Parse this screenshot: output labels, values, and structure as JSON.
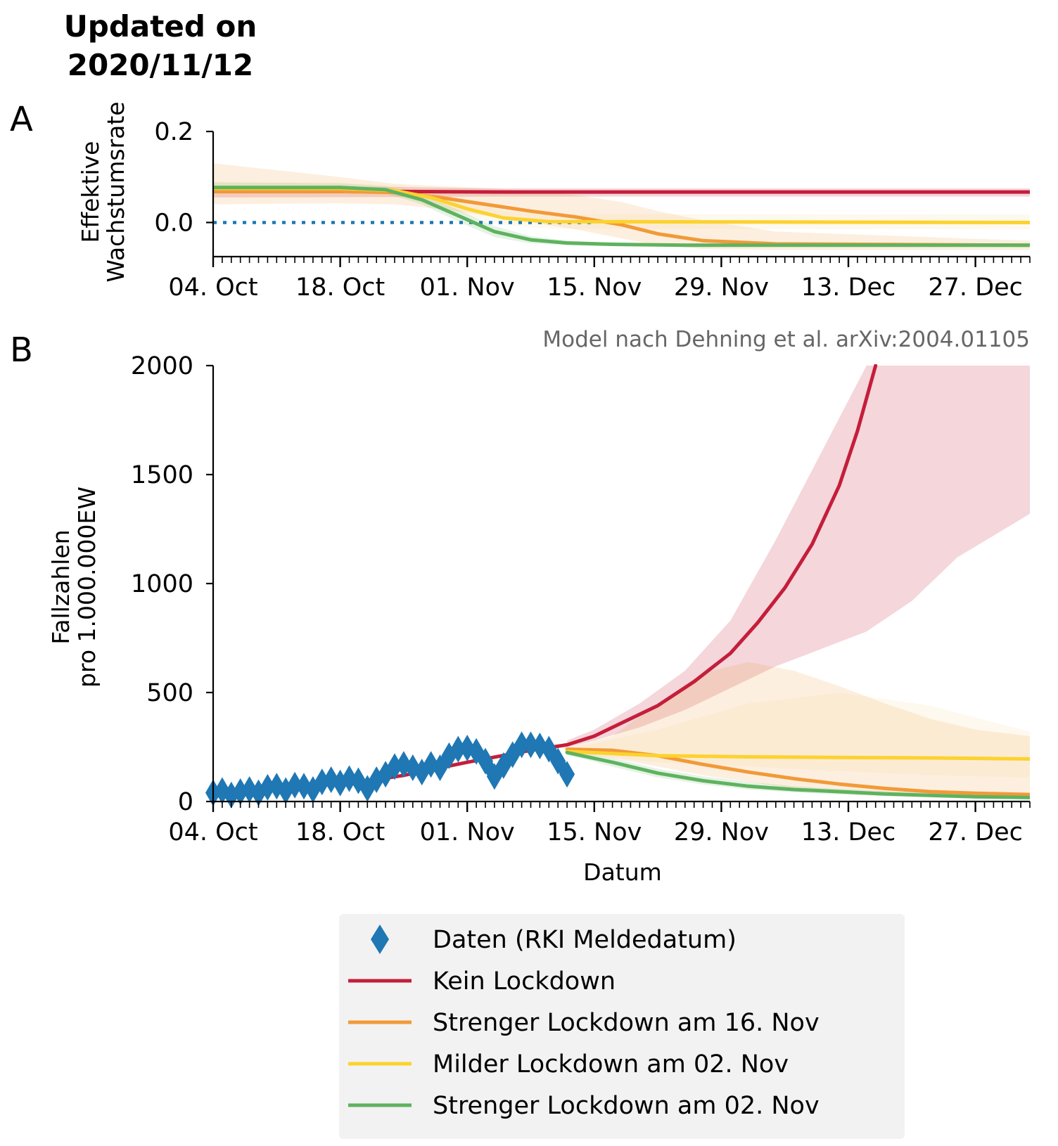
{
  "header": {
    "line1": "Updated on",
    "line2": "2020/11/12"
  },
  "panels": {
    "a_letter": "A",
    "b_letter": "B"
  },
  "credit": "Model nach Dehning et al. arXiv:2004.01105",
  "colors": {
    "data": "#1f77b4",
    "kein": "#c41e3a",
    "streng16": "#f19a38",
    "mild02": "#fcd22e",
    "streng02": "#5fb25f",
    "legend_bg": "#f2f2f2"
  },
  "chart_data": [
    {
      "id": "A",
      "type": "line",
      "ylabel": [
        "Effektive",
        "Wachstumsrate"
      ],
      "xlabel": "",
      "x_ticks": [
        "04. Oct",
        "18. Oct",
        "01. Nov",
        "15. Nov",
        "29. Nov",
        "13. Dec",
        "27. Dec"
      ],
      "x_tick_dates": [
        "2020-10-04",
        "2020-10-18",
        "2020-11-01",
        "2020-11-15",
        "2020-11-29",
        "2020-12-13",
        "2020-12-27"
      ],
      "xlim": [
        "2020-10-04",
        "2021-01-02"
      ],
      "yticks": [
        0.0,
        0.2
      ],
      "ytick_labels": [
        "0.0",
        "0.2"
      ],
      "ylim": [
        -0.075,
        0.2
      ],
      "reference_line": {
        "y": 0,
        "style": "dotted",
        "color": "#1f77b4"
      },
      "series": [
        {
          "key": "kein",
          "x": [
            "2020-10-04",
            "2020-10-25",
            "2020-11-05",
            "2021-01-02"
          ],
          "y": [
            0.068,
            0.068,
            0.067,
            0.067
          ],
          "band": {
            "upper": [
              0.08,
              0.078,
              0.075,
              0.075
            ],
            "lower": [
              0.055,
              0.056,
              0.057,
              0.057
            ]
          }
        },
        {
          "key": "streng16",
          "x": [
            "2020-10-04",
            "2020-10-18",
            "2020-10-24",
            "2020-10-29",
            "2020-11-03",
            "2020-11-08",
            "2020-11-13",
            "2020-11-18",
            "2020-11-22",
            "2020-11-27",
            "2020-12-05",
            "2021-01-02"
          ],
          "y": [
            0.068,
            0.068,
            0.066,
            0.055,
            0.04,
            0.025,
            0.012,
            -0.005,
            -0.025,
            -0.04,
            -0.047,
            -0.05
          ],
          "band": {
            "upper": [
              0.13,
              0.1,
              0.085,
              0.08,
              0.075,
              0.07,
              0.06,
              0.045,
              0.025,
              0.005,
              -0.02,
              -0.04
            ],
            "lower": [
              0.04,
              0.042,
              0.04,
              0.03,
              0.015,
              0.0,
              -0.015,
              -0.035,
              -0.05,
              -0.058,
              -0.06,
              -0.06
            ]
          }
        },
        {
          "key": "mild02",
          "x": [
            "2020-10-04",
            "2020-10-18",
            "2020-10-24",
            "2020-10-28",
            "2020-11-01",
            "2020-11-05",
            "2020-11-10",
            "2021-01-02"
          ],
          "y": [
            0.075,
            0.075,
            0.07,
            0.055,
            0.03,
            0.01,
            0.002,
            0.0
          ],
          "band": {
            "upper": [
              0.09,
              0.088,
              0.082,
              0.07,
              0.045,
              0.025,
              0.018,
              0.018
            ],
            "lower": [
              0.06,
              0.062,
              0.058,
              0.04,
              0.015,
              -0.005,
              -0.014,
              -0.015
            ]
          }
        },
        {
          "key": "streng02",
          "x": [
            "2020-10-04",
            "2020-10-18",
            "2020-10-23",
            "2020-10-27",
            "2020-10-31",
            "2020-11-04",
            "2020-11-08",
            "2020-11-12",
            "2020-11-17",
            "2020-11-25",
            "2021-01-02"
          ],
          "y": [
            0.077,
            0.077,
            0.072,
            0.05,
            0.015,
            -0.02,
            -0.038,
            -0.045,
            -0.048,
            -0.05,
            -0.05
          ],
          "band": {
            "upper": [
              0.088,
              0.086,
              0.08,
              0.06,
              0.028,
              -0.008,
              -0.03,
              -0.04,
              -0.045,
              -0.047,
              -0.047
            ],
            "lower": [
              0.066,
              0.068,
              0.064,
              0.04,
              0.002,
              -0.032,
              -0.046,
              -0.05,
              -0.052,
              -0.053,
              -0.053
            ]
          }
        }
      ]
    },
    {
      "id": "B",
      "type": "line",
      "ylabel": [
        "Fallzahlen",
        "pro 1.000.000EW"
      ],
      "xlabel": "Datum",
      "x_ticks": [
        "04. Oct",
        "18. Oct",
        "01. Nov",
        "15. Nov",
        "29. Nov",
        "13. Dec",
        "27. Dec"
      ],
      "x_tick_dates": [
        "2020-10-04",
        "2020-10-18",
        "2020-11-01",
        "2020-11-15",
        "2020-11-29",
        "2020-12-13",
        "2020-12-27"
      ],
      "xlim": [
        "2020-10-04",
        "2021-01-02"
      ],
      "yticks": [
        0,
        500,
        1000,
        1500,
        2000
      ],
      "ylim": [
        0,
        2000
      ],
      "series": [
        {
          "key": "data",
          "marker": "diamond",
          "x": [
            "2020-10-04",
            "2020-10-05",
            "2020-10-06",
            "2020-10-07",
            "2020-10-08",
            "2020-10-09",
            "2020-10-10",
            "2020-10-11",
            "2020-10-12",
            "2020-10-13",
            "2020-10-14",
            "2020-10-15",
            "2020-10-16",
            "2020-10-17",
            "2020-10-18",
            "2020-10-19",
            "2020-10-20",
            "2020-10-21",
            "2020-10-22",
            "2020-10-23",
            "2020-10-24",
            "2020-10-25",
            "2020-10-26",
            "2020-10-27",
            "2020-10-28",
            "2020-10-29",
            "2020-10-30",
            "2020-10-31",
            "2020-11-01",
            "2020-11-02",
            "2020-11-03",
            "2020-11-04",
            "2020-11-05",
            "2020-11-06",
            "2020-11-07",
            "2020-11-08",
            "2020-11-09",
            "2020-11-10",
            "2020-11-11",
            "2020-11-12"
          ],
          "y": [
            40,
            50,
            30,
            45,
            55,
            40,
            65,
            70,
            50,
            75,
            70,
            55,
            90,
            100,
            85,
            105,
            95,
            60,
            100,
            125,
            160,
            170,
            155,
            135,
            170,
            155,
            210,
            240,
            245,
            230,
            185,
            115,
            165,
            215,
            260,
            260,
            255,
            240,
            185,
            125
          ]
        },
        {
          "key": "kein",
          "x": [
            "2020-10-19",
            "2020-10-25",
            "2020-11-01",
            "2020-11-08",
            "2020-11-12",
            "2020-11-15",
            "2020-11-18",
            "2020-11-22",
            "2020-11-26",
            "2020-11-30",
            "2020-12-03",
            "2020-12-06",
            "2020-12-09",
            "2020-12-12",
            "2020-12-14",
            "2020-12-16"
          ],
          "y": [
            80,
            120,
            180,
            235,
            260,
            300,
            360,
            440,
            550,
            680,
            820,
            980,
            1180,
            1450,
            1700,
            2000
          ],
          "band": {
            "x": [
              "2020-11-12",
              "2020-11-15",
              "2020-11-20",
              "2020-11-25",
              "2020-11-30",
              "2020-12-05",
              "2020-12-10",
              "2020-12-15",
              "2020-12-20",
              "2020-12-25",
              "2021-01-02"
            ],
            "upper": [
              280,
              330,
              450,
              600,
              830,
              1200,
              1600,
              2000,
              2000,
              2000,
              2000
            ],
            "lower": [
              250,
              280,
              340,
              420,
              520,
              620,
              700,
              780,
              920,
              1120,
              1320
            ]
          }
        },
        {
          "key": "streng16",
          "x": [
            "2020-11-12",
            "2020-11-17",
            "2020-11-22",
            "2020-11-27",
            "2020-12-02",
            "2020-12-07",
            "2020-12-12",
            "2020-12-17",
            "2020-12-22",
            "2020-12-27",
            "2021-01-02"
          ],
          "y": [
            240,
            235,
            210,
            170,
            135,
            105,
            80,
            60,
            45,
            38,
            32
          ],
          "band": {
            "upper": [
              250,
              300,
              450,
              590,
              640,
              600,
              530,
              450,
              380,
              330,
              300
            ],
            "lower": [
              230,
              200,
              160,
              120,
              90,
              60,
              40,
              30,
              22,
              18,
              15
            ]
          }
        },
        {
          "key": "mild02",
          "x": [
            "2020-11-12",
            "2020-11-22",
            "2020-12-02",
            "2020-12-12",
            "2020-12-22",
            "2021-01-02"
          ],
          "y": [
            230,
            210,
            205,
            202,
            200,
            195
          ],
          "band": {
            "upper": [
              240,
              330,
              450,
              500,
              440,
              320
            ],
            "lower": [
              220,
              180,
              160,
              140,
              120,
              110
            ]
          }
        },
        {
          "key": "streng02",
          "x": [
            "2020-11-12",
            "2020-11-17",
            "2020-11-22",
            "2020-11-27",
            "2020-12-02",
            "2020-12-07",
            "2020-12-12",
            "2020-12-17",
            "2020-12-22",
            "2020-12-27",
            "2021-01-02"
          ],
          "y": [
            225,
            180,
            130,
            95,
            70,
            55,
            45,
            35,
            28,
            22,
            18
          ],
          "band": {
            "upper": [
              235,
              200,
              150,
              115,
              90,
              70,
              58,
              48,
              40,
              34,
              30
            ],
            "lower": [
              215,
              160,
              110,
              78,
              55,
              42,
              32,
              25,
              18,
              14,
              10
            ]
          }
        }
      ]
    }
  ],
  "legend": [
    {
      "key": "data",
      "label": "Daten (RKI Meldedatum)"
    },
    {
      "key": "kein",
      "label": "Kein Lockdown"
    },
    {
      "key": "streng16",
      "label": "Strenger Lockdown am 16. Nov"
    },
    {
      "key": "mild02",
      "label": "Milder Lockdown am 02. Nov"
    },
    {
      "key": "streng02",
      "label": "Strenger Lockdown am 02. Nov"
    }
  ]
}
